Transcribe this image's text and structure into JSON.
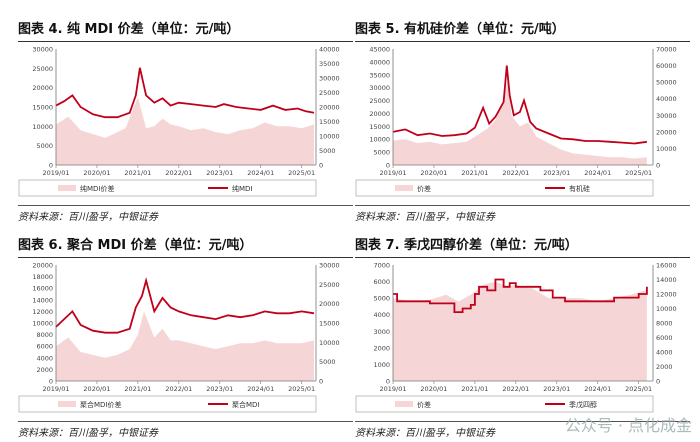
{
  "panels": [
    {
      "title": "图表 4. 纯 MDI 价差（单位：元/吨）",
      "source": "资料来源：百川盈孚，中银证券",
      "legend": [
        "纯MDI价差",
        "纯MDI"
      ]
    },
    {
      "title": "图表 5. 有机硅价差（单位：元/吨）",
      "source": "资料来源：百川盈孚，中银证券",
      "legend": [
        "价差",
        "有机硅"
      ]
    },
    {
      "title": "图表 6. 聚合 MDI 价差（单位：元/吨）",
      "source": "资料来源：百川盈孚，中银证券",
      "legend": [
        "聚合MDI价差",
        "聚合MDI"
      ]
    },
    {
      "title": "图表 7. 季戊四醇价差（单位：元/吨）",
      "source": "资料来源：百川盈孚，中银证券",
      "legend": [
        "价差",
        "季戊四醇"
      ]
    }
  ],
  "watermark": "公众号 · 点化成金",
  "colors": {
    "line": "#c0001a",
    "area": "#f6d5d6"
  },
  "chart_data": [
    {
      "type": "area",
      "xticks": [
        "2019/01",
        "2020/01",
        "2021/01",
        "2022/01",
        "2023/01",
        "2024/01",
        "2025/01"
      ],
      "ylim_left": [
        0,
        30000
      ],
      "yticks_left": [
        0,
        5000,
        10000,
        15000,
        20000,
        25000,
        30000
      ],
      "ylim_right": [
        0,
        40000
      ],
      "yticks_right": [
        0,
        5000,
        10000,
        15000,
        20000,
        25000,
        30000,
        35000,
        40000
      ],
      "series": [
        {
          "name": "纯MDI价差",
          "axis": "left",
          "kind": "area",
          "x": [
            2019.0,
            2019.3,
            2019.6,
            2019.9,
            2020.2,
            2020.4,
            2020.7,
            2020.9,
            2021.0,
            2021.2,
            2021.4,
            2021.6,
            2021.8,
            2022.0,
            2022.3,
            2022.6,
            2022.9,
            2023.2,
            2023.5,
            2023.8,
            2024.1,
            2024.4,
            2024.7,
            2025.0,
            2025.3
          ],
          "y": [
            10500,
            12500,
            9000,
            8000,
            7000,
            8000,
            9500,
            15000,
            17500,
            9500,
            10000,
            12000,
            10500,
            10000,
            9000,
            9500,
            8500,
            8000,
            9000,
            9500,
            11000,
            10000,
            10000,
            9500,
            10500
          ]
        },
        {
          "name": "纯MDI",
          "axis": "right",
          "kind": "line",
          "x": [
            2019.0,
            2019.2,
            2019.4,
            2019.6,
            2019.9,
            2020.2,
            2020.5,
            2020.8,
            2020.95,
            2021.05,
            2021.2,
            2021.4,
            2021.6,
            2021.8,
            2022.0,
            2022.3,
            2022.6,
            2022.9,
            2023.1,
            2023.4,
            2023.7,
            2024.0,
            2024.3,
            2024.6,
            2024.9,
            2025.1,
            2025.3
          ],
          "y": [
            20500,
            22000,
            24000,
            20000,
            17500,
            16500,
            16500,
            18000,
            24000,
            33500,
            24000,
            21500,
            23000,
            20500,
            21500,
            21000,
            20500,
            20000,
            21000,
            20000,
            19500,
            19000,
            20500,
            19000,
            19500,
            18500,
            18000
          ]
        }
      ]
    },
    {
      "type": "area",
      "xticks": [
        "2019/01",
        "2020/01",
        "2021/01",
        "2022/01",
        "2023/01",
        "2024/01",
        "2025/01"
      ],
      "ylim_left": [
        0,
        45000
      ],
      "yticks_left": [
        0,
        5000,
        10000,
        15000,
        20000,
        25000,
        30000,
        35000,
        40000,
        45000
      ],
      "ylim_right": [
        0,
        70000
      ],
      "yticks_right": [
        0,
        10000,
        20000,
        30000,
        40000,
        50000,
        60000,
        70000
      ],
      "series": [
        {
          "name": "价差",
          "axis": "left",
          "kind": "area",
          "x": [
            2019.0,
            2019.3,
            2019.6,
            2019.9,
            2020.2,
            2020.5,
            2020.8,
            2021.0,
            2021.3,
            2021.5,
            2021.7,
            2021.8,
            2021.9,
            2022.1,
            2022.3,
            2022.5,
            2022.8,
            2023.1,
            2023.4,
            2023.7,
            2024.0,
            2024.3,
            2024.6,
            2024.9,
            2025.2
          ],
          "y": [
            9500,
            10000,
            8500,
            9000,
            8000,
            8500,
            9000,
            11000,
            14000,
            17500,
            25000,
            33000,
            19000,
            15000,
            16500,
            11000,
            8500,
            6000,
            4500,
            4000,
            3500,
            3000,
            3000,
            2500,
            3000
          ]
        },
        {
          "name": "有机硅",
          "axis": "right",
          "kind": "line",
          "x": [
            2019.0,
            2019.3,
            2019.6,
            2019.9,
            2020.2,
            2020.5,
            2020.8,
            2021.0,
            2021.2,
            2021.35,
            2021.5,
            2021.7,
            2021.78,
            2021.85,
            2021.95,
            2022.1,
            2022.2,
            2022.35,
            2022.5,
            2022.8,
            2023.1,
            2023.4,
            2023.7,
            2024.0,
            2024.3,
            2024.6,
            2024.9,
            2025.2
          ],
          "y": [
            20000,
            21500,
            18000,
            19000,
            17500,
            18000,
            19000,
            22500,
            34500,
            25000,
            29000,
            38000,
            60000,
            42000,
            30000,
            32000,
            39000,
            26000,
            22000,
            19000,
            16000,
            15500,
            14500,
            14500,
            14000,
            13500,
            13000,
            14000
          ]
        }
      ]
    },
    {
      "type": "area",
      "xticks": [
        "2019/01",
        "2020/01",
        "2021/01",
        "2022/01",
        "2023/01",
        "2024/01",
        "2025/01"
      ],
      "ylim_left": [
        0,
        20000
      ],
      "yticks_left": [
        0,
        2000,
        4000,
        6000,
        8000,
        10000,
        12000,
        14000,
        16000,
        18000,
        20000
      ],
      "ylim_right": [
        0,
        30000
      ],
      "yticks_right": [
        0,
        5000,
        10000,
        15000,
        20000,
        25000,
        30000
      ],
      "series": [
        {
          "name": "聚合MDI价差",
          "axis": "left",
          "kind": "area",
          "x": [
            2019.0,
            2019.3,
            2019.6,
            2019.9,
            2020.2,
            2020.5,
            2020.8,
            2021.0,
            2021.15,
            2021.4,
            2021.6,
            2021.8,
            2022.0,
            2022.3,
            2022.6,
            2022.9,
            2023.2,
            2023.5,
            2023.8,
            2024.1,
            2024.4,
            2024.7,
            2025.0,
            2025.3
          ],
          "y": [
            6000,
            7500,
            5000,
            4500,
            4000,
            4500,
            5500,
            8000,
            12000,
            7500,
            9000,
            7000,
            7000,
            6500,
            6000,
            5500,
            6000,
            6500,
            6500,
            7000,
            6500,
            6500,
            6500,
            7000
          ]
        },
        {
          "name": "聚合MDI",
          "axis": "right",
          "kind": "line",
          "x": [
            2019.0,
            2019.2,
            2019.4,
            2019.6,
            2019.9,
            2020.2,
            2020.5,
            2020.8,
            2020.95,
            2021.1,
            2021.2,
            2021.4,
            2021.6,
            2021.8,
            2022.0,
            2022.3,
            2022.6,
            2022.9,
            2023.2,
            2023.5,
            2023.8,
            2024.1,
            2024.4,
            2024.7,
            2025.0,
            2025.3
          ],
          "y": [
            14000,
            16000,
            18000,
            14500,
            13000,
            12500,
            12500,
            13500,
            19000,
            22000,
            26000,
            18000,
            21500,
            19000,
            18000,
            17000,
            16500,
            16000,
            17000,
            16500,
            17000,
            18000,
            17500,
            17500,
            18000,
            17500
          ]
        }
      ]
    },
    {
      "type": "area",
      "xticks": [
        "2019/01",
        "2020/01",
        "2021/01",
        "2022/01",
        "2023/01",
        "2024/01",
        "2025/01"
      ],
      "ylim_left": [
        0,
        7000
      ],
      "yticks_left": [
        0,
        1000,
        2000,
        3000,
        4000,
        5000,
        6000,
        7000
      ],
      "ylim_right": [
        0,
        16000
      ],
      "yticks_right": [
        0,
        2000,
        4000,
        6000,
        8000,
        10000,
        12000,
        14000,
        16000
      ],
      "series": [
        {
          "name": "价差",
          "axis": "left",
          "kind": "area",
          "x": [
            2019.0,
            2019.5,
            2019.9,
            2020.3,
            2020.6,
            2020.9,
            2021.2,
            2021.5,
            2021.8,
            2022.0,
            2022.4,
            2022.8,
            2023.2,
            2023.6,
            2024.0,
            2024.4,
            2024.8,
            2025.2
          ],
          "y": [
            5000,
            4800,
            4900,
            5200,
            4800,
            5200,
            5800,
            6000,
            5700,
            5800,
            5600,
            5000,
            5000,
            5000,
            4800,
            5000,
            5200,
            5500
          ]
        },
        {
          "name": "季戊四醇",
          "axis": "right",
          "kind": "line",
          "step": true,
          "x": [
            2019.0,
            2019.1,
            2019.5,
            2019.9,
            2020.2,
            2020.5,
            2020.7,
            2020.9,
            2021.0,
            2021.1,
            2021.3,
            2021.5,
            2021.7,
            2021.85,
            2022.0,
            2022.3,
            2022.6,
            2022.9,
            2023.2,
            2023.5,
            2023.8,
            2024.1,
            2024.4,
            2024.7,
            2025.0,
            2025.2
          ],
          "y": [
            12000,
            11000,
            11000,
            10700,
            10700,
            9500,
            10000,
            10500,
            12000,
            13000,
            12500,
            14000,
            13000,
            13500,
            13000,
            13000,
            12500,
            11500,
            11000,
            11000,
            11000,
            11000,
            11500,
            11500,
            12000,
            13000
          ]
        }
      ]
    }
  ]
}
